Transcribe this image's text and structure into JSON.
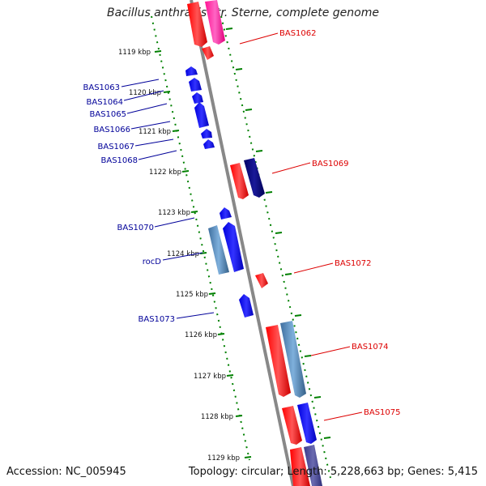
{
  "title": "Bacillus anthracis str. Sterne, complete genome",
  "footer": {
    "accession": "Accession: NC_005945",
    "summary": "Topology: circular; Length: 5,228,663 bp; Genes: 5,415"
  },
  "ticks": [
    "1119 kbp",
    "1120 kbp",
    "1121 kbp",
    "1122 kbp",
    "1123 kbp",
    "1124 kbp",
    "1125 kbp",
    "1126 kbp",
    "1127 kbp",
    "1128 kbp",
    "1129 kbp"
  ],
  "left_genes": [
    "BAS1063",
    "BAS1064",
    "BAS1065",
    "BAS1066",
    "BAS1067",
    "BAS1068",
    "BAS1070",
    "rocD",
    "BAS1073"
  ],
  "right_genes": [
    "BAS1062",
    "BAS1069",
    "BAS1072",
    "BAS1074",
    "BAS1075"
  ],
  "colors": {
    "forward_strand": "#0000ff",
    "forward_light": "#4682b4",
    "reverse_strand": "#ff0000",
    "reverse_pink": "#ff1493",
    "navy": "#000080",
    "axis": "#888888",
    "tick": "#008000",
    "left_label": "#000099",
    "right_label": "#dd0000"
  }
}
